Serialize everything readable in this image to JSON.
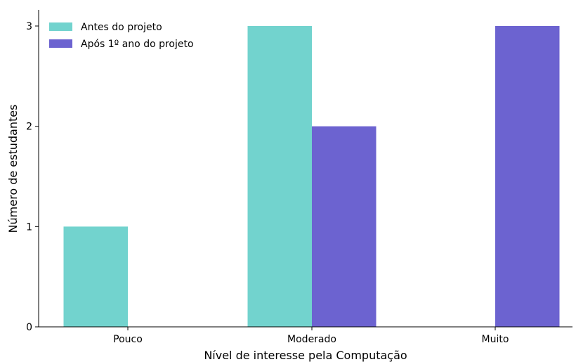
{
  "chart_data": {
    "type": "bar",
    "title": "",
    "xlabel": "Nível de interesse pela Computação",
    "ylabel": "Número de estudantes",
    "categories": [
      "Pouco",
      "Moderado",
      "Muito"
    ],
    "series": [
      {
        "name": "Antes do projeto",
        "color": "#72d3ce",
        "values": [
          1,
          3,
          0
        ]
      },
      {
        "name": "Após 1º ano do projeto",
        "color": "#6c63d0",
        "values": [
          0,
          2,
          3
        ]
      }
    ],
    "ylim": [
      0,
      3
    ],
    "yticks": [
      0,
      1,
      2,
      3
    ],
    "grid": false,
    "legend_position": "top-left"
  }
}
